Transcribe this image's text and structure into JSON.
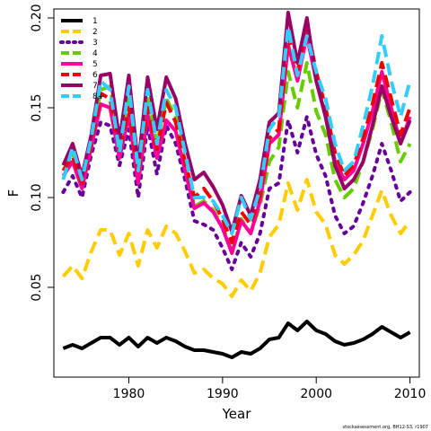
{
  "chart_data": {
    "type": "line",
    "title": "",
    "xlabel": "Year",
    "ylabel": "F",
    "xlim": [
      1972,
      2011
    ],
    "ylim": [
      0.0,
      0.205
    ],
    "x_ticks": [
      1980,
      1990,
      2000,
      2010
    ],
    "y_ticks": [
      0.05,
      0.1,
      0.15,
      0.2
    ],
    "y_tick_labels": [
      "0.05",
      "0.10",
      "0.15",
      "0.20"
    ],
    "legend_position": "top-left",
    "credit": "stockassessment.org, BH12-S3, r1907",
    "x": [
      1973,
      1974,
      1975,
      1976,
      1977,
      1978,
      1979,
      1980,
      1981,
      1982,
      1983,
      1984,
      1985,
      1986,
      1987,
      1988,
      1989,
      1990,
      1991,
      1992,
      1993,
      1994,
      1995,
      1996,
      1997,
      1998,
      1999,
      2000,
      2001,
      2002,
      2003,
      2004,
      2005,
      2006,
      2007,
      2008,
      2009,
      2010
    ],
    "series": [
      {
        "name": "1",
        "color": "#000000",
        "dash": "solid",
        "values": [
          0.016,
          0.018,
          0.016,
          0.019,
          0.022,
          0.022,
          0.018,
          0.022,
          0.017,
          0.022,
          0.019,
          0.022,
          0.02,
          0.017,
          0.015,
          0.015,
          0.014,
          0.013,
          0.011,
          0.014,
          0.013,
          0.016,
          0.021,
          0.022,
          0.03,
          0.026,
          0.031,
          0.026,
          0.024,
          0.02,
          0.018,
          0.019,
          0.021,
          0.024,
          0.028,
          0.025,
          0.022,
          0.025
        ]
      },
      {
        "name": "2",
        "color": "#ffcc00",
        "dash": "dashed",
        "values": [
          0.056,
          0.062,
          0.055,
          0.07,
          0.082,
          0.082,
          0.068,
          0.08,
          0.062,
          0.082,
          0.072,
          0.084,
          0.08,
          0.07,
          0.058,
          0.06,
          0.055,
          0.052,
          0.045,
          0.054,
          0.048,
          0.058,
          0.078,
          0.085,
          0.108,
          0.093,
          0.11,
          0.092,
          0.085,
          0.068,
          0.063,
          0.068,
          0.076,
          0.09,
          0.104,
          0.09,
          0.08,
          0.087
        ]
      },
      {
        "name": "3",
        "color": "#660099",
        "dash": "dotted",
        "values": [
          0.103,
          0.112,
          0.1,
          0.124,
          0.142,
          0.14,
          0.118,
          0.138,
          0.1,
          0.14,
          0.113,
          0.14,
          0.13,
          0.11,
          0.087,
          0.085,
          0.082,
          0.072,
          0.06,
          0.075,
          0.067,
          0.08,
          0.105,
          0.108,
          0.143,
          0.125,
          0.145,
          0.124,
          0.112,
          0.09,
          0.08,
          0.084,
          0.097,
          0.112,
          0.13,
          0.115,
          0.098,
          0.103
        ]
      },
      {
        "name": "4",
        "color": "#66cc00",
        "dash": "dashed",
        "values": [
          0.115,
          0.125,
          0.107,
          0.13,
          0.16,
          0.162,
          0.128,
          0.155,
          0.115,
          0.155,
          0.13,
          0.155,
          0.145,
          0.12,
          0.095,
          0.098,
          0.093,
          0.084,
          0.07,
          0.088,
          0.08,
          0.096,
          0.12,
          0.128,
          0.17,
          0.15,
          0.175,
          0.148,
          0.135,
          0.11,
          0.1,
          0.105,
          0.12,
          0.138,
          0.16,
          0.142,
          0.12,
          0.13
        ]
      },
      {
        "name": "5",
        "color": "#ff0099",
        "dash": "solid",
        "values": [
          0.112,
          0.12,
          0.105,
          0.128,
          0.152,
          0.15,
          0.122,
          0.146,
          0.108,
          0.146,
          0.122,
          0.143,
          0.137,
          0.115,
          0.094,
          0.097,
          0.092,
          0.083,
          0.069,
          0.087,
          0.08,
          0.098,
          0.13,
          0.135,
          0.185,
          0.165,
          0.19,
          0.165,
          0.145,
          0.12,
          0.11,
          0.115,
          0.13,
          0.148,
          0.17,
          0.15,
          0.13,
          0.145
        ]
      },
      {
        "name": "6",
        "color": "#ee0000",
        "dash": "dashed",
        "values": [
          0.115,
          0.123,
          0.108,
          0.13,
          0.158,
          0.155,
          0.125,
          0.15,
          0.113,
          0.15,
          0.127,
          0.153,
          0.142,
          0.12,
          0.1,
          0.105,
          0.098,
          0.088,
          0.075,
          0.092,
          0.085,
          0.102,
          0.133,
          0.138,
          0.19,
          0.17,
          0.196,
          0.17,
          0.15,
          0.125,
          0.112,
          0.118,
          0.133,
          0.152,
          0.175,
          0.155,
          0.135,
          0.15
        ]
      },
      {
        "name": "7",
        "color": "#990066",
        "dash": "solid",
        "values": [
          0.118,
          0.13,
          0.112,
          0.135,
          0.168,
          0.169,
          0.132,
          0.168,
          0.118,
          0.167,
          0.138,
          0.167,
          0.155,
          0.13,
          0.11,
          0.114,
          0.106,
          0.096,
          0.081,
          0.101,
          0.09,
          0.11,
          0.142,
          0.147,
          0.203,
          0.175,
          0.2,
          0.165,
          0.145,
          0.118,
          0.105,
          0.11,
          0.12,
          0.14,
          0.162,
          0.145,
          0.13,
          0.143
        ]
      },
      {
        "name": "8+",
        "color": "#33ccff",
        "dash": "dashed",
        "values": [
          0.11,
          0.128,
          0.11,
          0.133,
          0.165,
          0.16,
          0.125,
          0.162,
          0.115,
          0.16,
          0.13,
          0.16,
          0.15,
          0.125,
          0.1,
          0.1,
          0.098,
          0.09,
          0.08,
          0.1,
          0.088,
          0.105,
          0.138,
          0.145,
          0.195,
          0.168,
          0.19,
          0.17,
          0.155,
          0.13,
          0.115,
          0.12,
          0.14,
          0.162,
          0.19,
          0.165,
          0.145,
          0.165
        ]
      }
    ]
  }
}
